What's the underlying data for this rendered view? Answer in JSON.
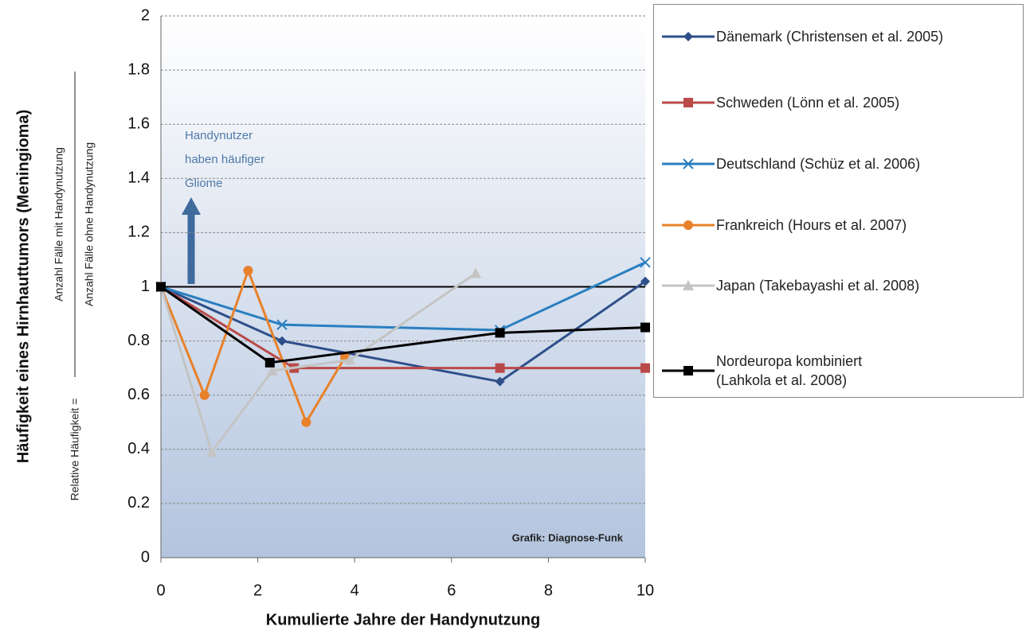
{
  "chart_data": {
    "type": "line",
    "ylabel": "Häufigkeit eines Hirnhauttumors (Meningioma)",
    "ylabel2": "Relative Häufigkeit =",
    "fraction_numerator": "Anzahl Fälle mit Handynutzung",
    "fraction_denominator": "Anzahl Fälle ohne Handynutzung",
    "xlabel": "Kumulierte Jahre der Handynutzung",
    "annotation": "Handynutzer\nhaben häufiger\nGliome",
    "credit": "Grafik: Diagnose-Funk",
    "xlim": [
      0,
      10
    ],
    "xticks": [
      0,
      2,
      4,
      6,
      8,
      10
    ],
    "ylim": [
      0,
      2
    ],
    "yticks": [
      0,
      0.2,
      0.4,
      0.6,
      0.8,
      1,
      1.2,
      1.4,
      1.6,
      1.8,
      2
    ],
    "grid": true,
    "reference_line": 1,
    "series": [
      {
        "name": "Dänemark (Christensen et al. 2005)",
        "color": "#2e4f8a",
        "marker": "diamond",
        "x": [
          0,
          2.5,
          7,
          10
        ],
        "values": [
          1,
          0.8,
          0.65,
          1.02
        ]
      },
      {
        "name": "Schweden (Lönn et al. 2005)",
        "color": "#b94a48",
        "marker": "square",
        "x": [
          0,
          2.75,
          7,
          10
        ],
        "values": [
          1,
          0.7,
          0.7,
          0.7
        ]
      },
      {
        "name": "Deutschland (Schüz et al. 2006)",
        "color": "#2a7fc0",
        "marker": "x",
        "x": [
          0,
          2.5,
          7,
          10
        ],
        "values": [
          1,
          0.86,
          0.84,
          1.09
        ]
      },
      {
        "name": "Frankreich (Hours et al. 2007)",
        "color": "#e8812a",
        "marker": "circle",
        "x": [
          0,
          0.9,
          1.8,
          3,
          3.8
        ],
        "values": [
          1,
          0.6,
          1.06,
          0.5,
          0.74
        ]
      },
      {
        "name": "Japan (Takebayashi et al. 2008)",
        "color": "#c4c4c4",
        "marker": "triangle",
        "x": [
          0,
          1.05,
          2.3,
          3.9,
          6.5
        ],
        "values": [
          1,
          0.39,
          0.69,
          0.73,
          1.05
        ]
      },
      {
        "name": "Nordeuropa kombiniert\n(Lahkola et al. 2008)",
        "color": "#000000",
        "marker": "square",
        "x": [
          0,
          2.25,
          7,
          10
        ],
        "values": [
          1,
          0.72,
          0.83,
          0.85
        ]
      }
    ]
  }
}
